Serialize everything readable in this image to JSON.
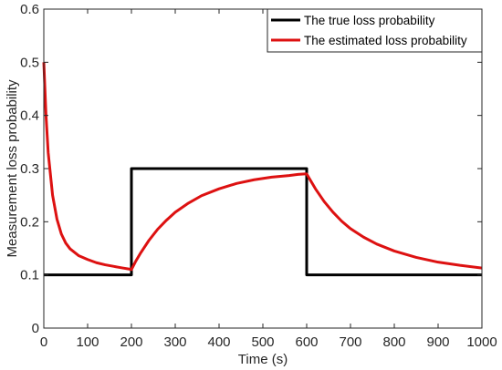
{
  "chart_data": {
    "type": "line",
    "xlabel": "Time (s)",
    "ylabel": "Measurement loss probability",
    "xlim": [
      0,
      1000
    ],
    "ylim": [
      0,
      0.6
    ],
    "xticks": [
      0,
      100,
      200,
      300,
      400,
      500,
      600,
      700,
      800,
      900,
      1000
    ],
    "yticks": [
      0,
      0.1,
      0.2,
      0.3,
      0.4,
      0.5,
      0.6
    ],
    "xtick_labels": [
      "0",
      "100",
      "200",
      "300",
      "400",
      "500",
      "600",
      "700",
      "800",
      "900",
      "1000"
    ],
    "ytick_labels": [
      "0",
      "0.1",
      "0.2",
      "0.3",
      "0.4",
      "0.5",
      "0.6"
    ],
    "grid": false,
    "legend_position": "top-right",
    "series": [
      {
        "name": "The true loss probability",
        "color": "#000000",
        "x": [
          0,
          200,
          200,
          600,
          600,
          1000
        ],
        "y": [
          0.1,
          0.1,
          0.3,
          0.3,
          0.1,
          0.1
        ]
      },
      {
        "name": "The estimated loss probability",
        "color": "#dd1111",
        "x": [
          0,
          5,
          10,
          20,
          30,
          40,
          50,
          60,
          80,
          100,
          120,
          140,
          160,
          180,
          195,
          200,
          210,
          220,
          240,
          260,
          280,
          300,
          330,
          360,
          400,
          440,
          480,
          520,
          560,
          580,
          595,
          600,
          620,
          640,
          660,
          680,
          700,
          730,
          760,
          800,
          850,
          900,
          950,
          1000
        ],
        "y": [
          0.5,
          0.4,
          0.33,
          0.25,
          0.205,
          0.177,
          0.16,
          0.149,
          0.136,
          0.129,
          0.123,
          0.119,
          0.116,
          0.113,
          0.111,
          0.11,
          0.126,
          0.14,
          0.165,
          0.186,
          0.203,
          0.218,
          0.235,
          0.249,
          0.262,
          0.272,
          0.279,
          0.284,
          0.287,
          0.289,
          0.29,
          0.29,
          0.262,
          0.238,
          0.218,
          0.201,
          0.187,
          0.171,
          0.158,
          0.145,
          0.133,
          0.124,
          0.118,
          0.113
        ]
      }
    ]
  }
}
